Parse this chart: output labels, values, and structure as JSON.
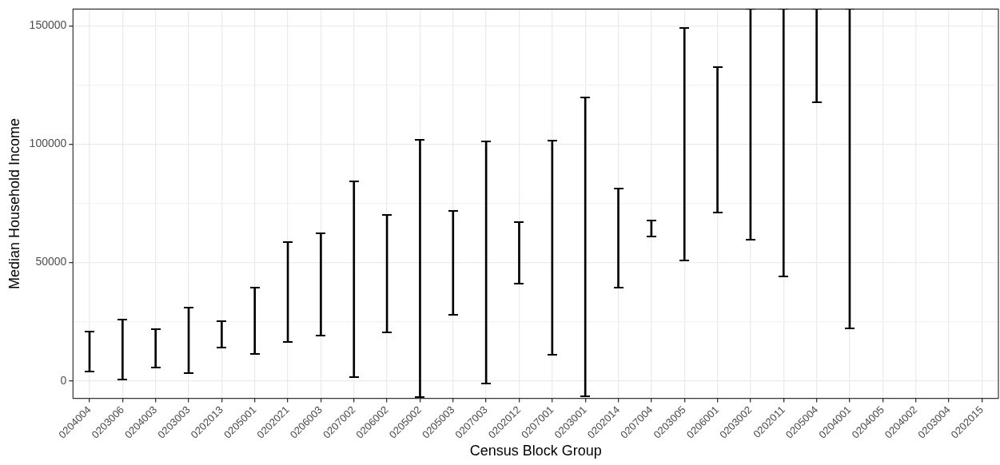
{
  "chart_data": {
    "type": "bar",
    "xlabel": "Census Block Group",
    "ylabel": "Median Household Income",
    "categories": [
      "0204004",
      "0203006",
      "0204003",
      "0203003",
      "0202013",
      "0205001",
      "0202021",
      "0206003",
      "0207002",
      "0206002",
      "0205002",
      "0205003",
      "0207003",
      "0202012",
      "0207001",
      "0203001",
      "0202014",
      "0207004",
      "0203005",
      "0206001",
      "0203002",
      "0202011",
      "0205004",
      "0204001",
      "0204005",
      "0204002",
      "0203004",
      "0202015"
    ],
    "series": [
      {
        "color": "#000000",
        "base": [
          4000,
          400,
          5600,
          3100,
          14000,
          11400,
          16400,
          19000,
          1600,
          20600,
          -6800,
          27900,
          -1000,
          41200,
          10900,
          -6600,
          39500,
          61000,
          50800,
          71200,
          59500,
          44100,
          117600,
          22100,
          null,
          null,
          null,
          null
        ],
        "values": [
          16800,
          25400,
          16200,
          27800,
          11200,
          28100,
          42200,
          43500,
          82800,
          49600,
          108800,
          43900,
          102200,
          26000,
          90600,
          126300,
          41900,
          6600,
          98400,
          61400,
          97600,
          113000,
          39500,
          135000,
          null,
          null,
          null,
          null
        ]
      }
    ],
    "ylim": [
      -7400,
      157100
    ],
    "yticks": [
      0,
      {
        "value": 25000,
        "label": null
      },
      50000,
      {
        "value": 75000,
        "label": null
      },
      100000,
      {
        "value": 125000,
        "label": null
      },
      150000
    ],
    "grid": true,
    "legend": false
  }
}
